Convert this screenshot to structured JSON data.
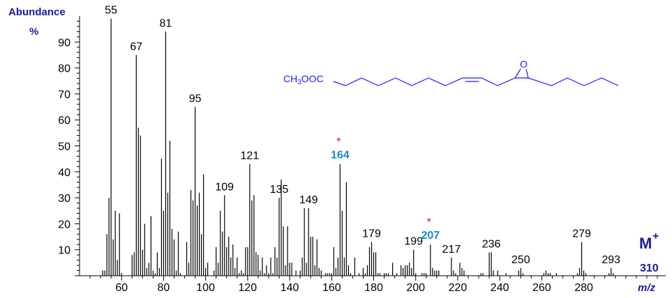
{
  "chart_data": {
    "type": "bar",
    "ylabel": "Abundance",
    "ylabel_unit": "%",
    "xlabel": "m/z",
    "xlim": [
      40,
      319
    ],
    "ylim": [
      0,
      100
    ],
    "x_ticks": [
      60,
      80,
      100,
      120,
      140,
      160,
      180,
      200,
      220,
      240,
      260,
      280
    ],
    "y_ticks": [
      10,
      20,
      30,
      40,
      50,
      60,
      70,
      80,
      90
    ],
    "grid": false,
    "colors": {
      "bars": "#000000",
      "highlight_label": "#1e88c8",
      "asterisk": "#ff0000",
      "axis_title": "#1a1aa0",
      "structure": "#1a1aff"
    },
    "peaks": [
      [
        51,
        2
      ],
      [
        52,
        2
      ],
      [
        53,
        16
      ],
      [
        54,
        30
      ],
      [
        55,
        99
      ],
      [
        56,
        14
      ],
      [
        57,
        25
      ],
      [
        58,
        6
      ],
      [
        59,
        24
      ],
      [
        60,
        1
      ],
      [
        65,
        8
      ],
      [
        66,
        9
      ],
      [
        67,
        85
      ],
      [
        68,
        57
      ],
      [
        69,
        54
      ],
      [
        70,
        10
      ],
      [
        71,
        20
      ],
      [
        72,
        3
      ],
      [
        73,
        5
      ],
      [
        74,
        23
      ],
      [
        75,
        2
      ],
      [
        76,
        1
      ],
      [
        77,
        9
      ],
      [
        78,
        3
      ],
      [
        79,
        45
      ],
      [
        80,
        25
      ],
      [
        81,
        94
      ],
      [
        82,
        32
      ],
      [
        83,
        52
      ],
      [
        84,
        18
      ],
      [
        85,
        14
      ],
      [
        86,
        2
      ],
      [
        87,
        17
      ],
      [
        88,
        1
      ],
      [
        91,
        13
      ],
      [
        92,
        5
      ],
      [
        93,
        33
      ],
      [
        94,
        29
      ],
      [
        95,
        65
      ],
      [
        96,
        27
      ],
      [
        97,
        32
      ],
      [
        98,
        16
      ],
      [
        99,
        39
      ],
      [
        100,
        3
      ],
      [
        101,
        5
      ],
      [
        104,
        2
      ],
      [
        105,
        11
      ],
      [
        106,
        5
      ],
      [
        107,
        25
      ],
      [
        108,
        17
      ],
      [
        109,
        31
      ],
      [
        110,
        11
      ],
      [
        111,
        15
      ],
      [
        112,
        7
      ],
      [
        113,
        12
      ],
      [
        114,
        3
      ],
      [
        115,
        7
      ],
      [
        116,
        1
      ],
      [
        117,
        2
      ],
      [
        118,
        1
      ],
      [
        119,
        11
      ],
      [
        120,
        11
      ],
      [
        121,
        43
      ],
      [
        122,
        29
      ],
      [
        123,
        31
      ],
      [
        124,
        9
      ],
      [
        125,
        8
      ],
      [
        126,
        2
      ],
      [
        127,
        7
      ],
      [
        128,
        1
      ],
      [
        129,
        4
      ],
      [
        130,
        1
      ],
      [
        131,
        7
      ],
      [
        132,
        1
      ],
      [
        133,
        11
      ],
      [
        134,
        7
      ],
      [
        135,
        30
      ],
      [
        136,
        37
      ],
      [
        137,
        19
      ],
      [
        138,
        4
      ],
      [
        139,
        19
      ],
      [
        140,
        5
      ],
      [
        141,
        5
      ],
      [
        143,
        2
      ],
      [
        145,
        2
      ],
      [
        146,
        7
      ],
      [
        147,
        26
      ],
      [
        148,
        5
      ],
      [
        149,
        26
      ],
      [
        150,
        15
      ],
      [
        151,
        15
      ],
      [
        152,
        4
      ],
      [
        153,
        14
      ],
      [
        154,
        3
      ],
      [
        155,
        2
      ],
      [
        157,
        1
      ],
      [
        158,
        1
      ],
      [
        159,
        1
      ],
      [
        160,
        1
      ],
      [
        161,
        11
      ],
      [
        162,
        3
      ],
      [
        163,
        7
      ],
      [
        164,
        43
      ],
      [
        165,
        25
      ],
      [
        166,
        7
      ],
      [
        167,
        36
      ],
      [
        168,
        4
      ],
      [
        169,
        1
      ],
      [
        171,
        7
      ],
      [
        173,
        1
      ],
      [
        175,
        3
      ],
      [
        176,
        1
      ],
      [
        177,
        4
      ],
      [
        178,
        11
      ],
      [
        179,
        13
      ],
      [
        180,
        9
      ],
      [
        181,
        9
      ],
      [
        182,
        1
      ],
      [
        183,
        1
      ],
      [
        185,
        1
      ],
      [
        186,
        1
      ],
      [
        187,
        1
      ],
      [
        189,
        5
      ],
      [
        191,
        1
      ],
      [
        193,
        4
      ],
      [
        194,
        3
      ],
      [
        195,
        4
      ],
      [
        196,
        4
      ],
      [
        197,
        5
      ],
      [
        198,
        3
      ],
      [
        199,
        10
      ],
      [
        200,
        1
      ],
      [
        203,
        1
      ],
      [
        204,
        1
      ],
      [
        205,
        1
      ],
      [
        207,
        12
      ],
      [
        208,
        3
      ],
      [
        209,
        2
      ],
      [
        210,
        2
      ],
      [
        211,
        2
      ],
      [
        217,
        7
      ],
      [
        218,
        2
      ],
      [
        219,
        1
      ],
      [
        221,
        5
      ],
      [
        222,
        3
      ],
      [
        223,
        2
      ],
      [
        231,
        1
      ],
      [
        232,
        1
      ],
      [
        235,
        9
      ],
      [
        236,
        9
      ],
      [
        237,
        2
      ],
      [
        239,
        2
      ],
      [
        243,
        1
      ],
      [
        249,
        2
      ],
      [
        250,
        3
      ],
      [
        251,
        1
      ],
      [
        261,
        1
      ],
      [
        262,
        2
      ],
      [
        263,
        1
      ],
      [
        264,
        1
      ],
      [
        267,
        1
      ],
      [
        277,
        1
      ],
      [
        278,
        3
      ],
      [
        279,
        13
      ],
      [
        280,
        2
      ],
      [
        281,
        1
      ],
      [
        292,
        1
      ],
      [
        293,
        3
      ],
      [
        294,
        1
      ]
    ],
    "peak_labels": [
      {
        "mz": 55,
        "text": "55"
      },
      {
        "mz": 67,
        "text": "67"
      },
      {
        "mz": 81,
        "text": "81"
      },
      {
        "mz": 95,
        "text": "95"
      },
      {
        "mz": 109,
        "text": "109"
      },
      {
        "mz": 121,
        "text": "121"
      },
      {
        "mz": 135,
        "text": "135"
      },
      {
        "mz": 149,
        "text": "149"
      },
      {
        "mz": 164,
        "text": "164",
        "highlight": true,
        "marker": "*"
      },
      {
        "mz": 179,
        "text": "179"
      },
      {
        "mz": 199,
        "text": "199"
      },
      {
        "mz": 207,
        "text": "207",
        "highlight": true,
        "marker": "*"
      },
      {
        "mz": 217,
        "text": "217"
      },
      {
        "mz": 236,
        "text": "236"
      },
      {
        "mz": 250,
        "text": "250"
      },
      {
        "mz": 279,
        "text": "279"
      },
      {
        "mz": 293,
        "text": "293"
      }
    ],
    "molecular_ion": {
      "label": "M",
      "charge": "+",
      "mz": "310"
    }
  },
  "structure": {
    "ester_group": "CH3OOC",
    "ester_prefix": "CH",
    "ester_sub": "3",
    "ester_suffix": "OOC",
    "oxygen": "O"
  }
}
